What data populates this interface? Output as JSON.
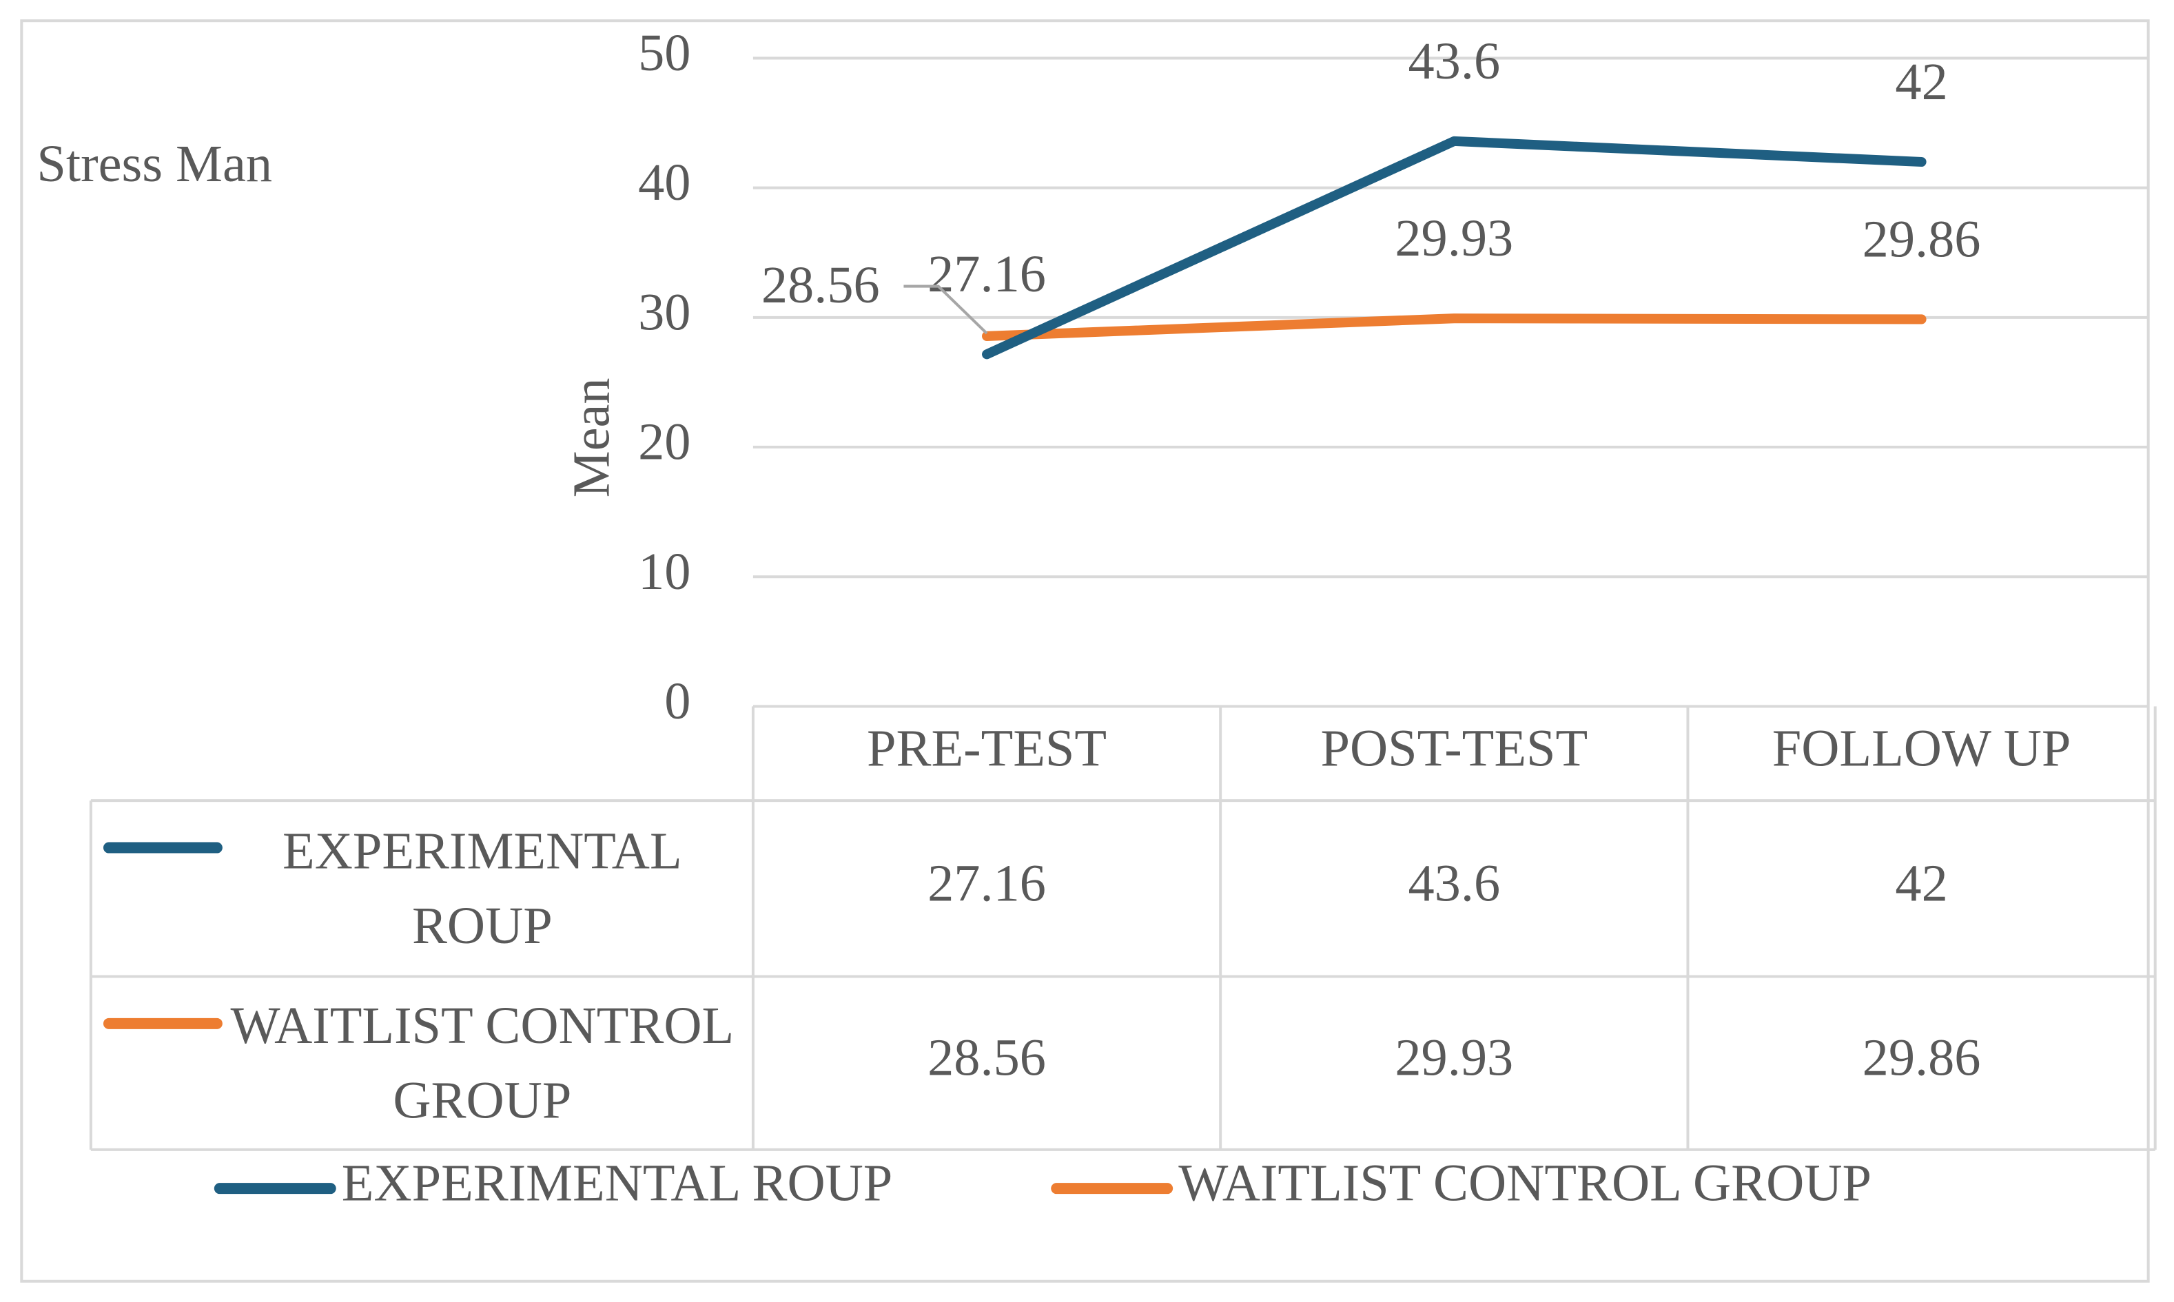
{
  "chart_data": {
    "type": "line",
    "title": "Stress Man",
    "y_label": "Mean",
    "categories": [
      "PRE-TEST",
      "POST-TEST",
      "FOLLOW UP"
    ],
    "series": [
      {
        "name": "EXPERIMENTAL ROUP",
        "color": "#1f5f82",
        "values": [
          27.16,
          43.6,
          42
        ]
      },
      {
        "name": "WAITLIST CONTROL GROUP",
        "color": "#ed7d31",
        "values": [
          28.56,
          29.93,
          29.86
        ]
      }
    ],
    "ylim": [
      0,
      50
    ],
    "yticks": [
      0,
      10,
      20,
      30,
      40,
      50
    ],
    "grid": true,
    "data_labels": true,
    "data_table": true,
    "legend": "bottom"
  }
}
